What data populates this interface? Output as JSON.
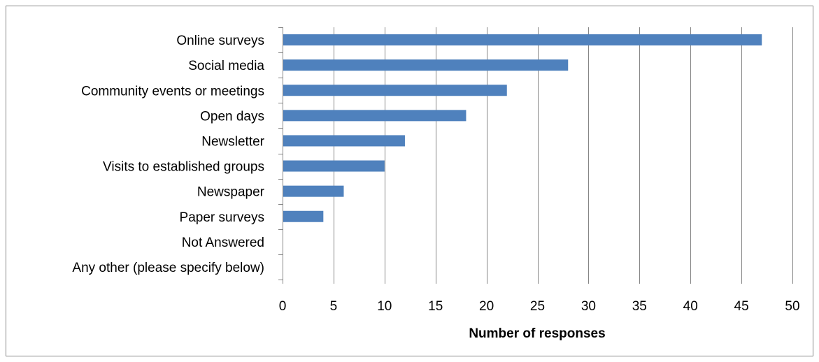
{
  "chart_data": {
    "type": "bar",
    "orientation": "horizontal",
    "categories": [
      "Online surveys",
      "Social media",
      "Community events or meetings",
      "Open days",
      "Newsletter",
      "Visits to established groups",
      "Newspaper",
      "Paper surveys",
      "Not Answered",
      "Any other (please specify below)"
    ],
    "values": [
      47,
      28,
      22,
      18,
      12,
      10,
      6,
      4,
      0,
      0
    ],
    "title": "",
    "xlabel": "Number of responses",
    "ylabel": "",
    "xlim": [
      0,
      50
    ],
    "xticks": [
      0,
      5,
      10,
      15,
      20,
      25,
      30,
      35,
      40,
      45,
      50
    ],
    "grid": "vertical",
    "legend": "none",
    "colors": {
      "bar": "#4F81BD",
      "grid": "#868686",
      "border": "#868686"
    }
  }
}
